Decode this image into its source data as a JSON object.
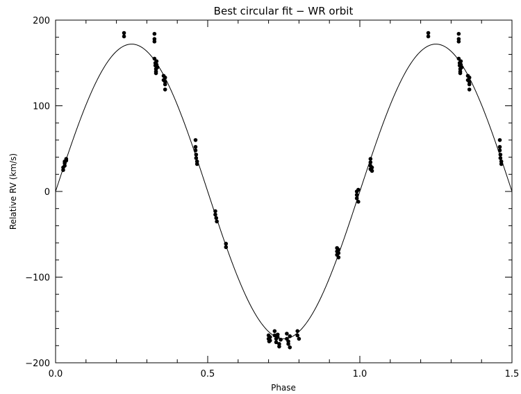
{
  "chart_data": {
    "type": "scatter",
    "title": "Best circular fit − WR orbit",
    "xlabel": "Phase",
    "ylabel": "Relative RV (km/s)",
    "xlim": [
      0.0,
      1.5
    ],
    "ylim": [
      -200,
      200
    ],
    "x_ticks": [
      "0.0",
      "0.5",
      "1.0",
      "1.5"
    ],
    "y_ticks": [
      "−200",
      "−100",
      "0",
      "100",
      "200"
    ],
    "grid": false,
    "legend": "none",
    "fit_curve": {
      "amplitude": 172,
      "offset": 0,
      "phase_of_max": 0.25
    },
    "series": [
      {
        "x": [
          0.025,
          0.025,
          0.03,
          0.03,
          0.03,
          0.035,
          0.035,
          0.225,
          0.225,
          0.325,
          0.325,
          0.325,
          0.325,
          0.328,
          0.328,
          0.33,
          0.33,
          0.33,
          0.332,
          0.332,
          0.335,
          0.355,
          0.355,
          0.36,
          0.36,
          0.36,
          0.36,
          0.46,
          0.46,
          0.46,
          0.462,
          0.462,
          0.465,
          0.465,
          0.525,
          0.525,
          0.528,
          0.53,
          0.56,
          0.56,
          0.7,
          0.7,
          0.702,
          0.705,
          0.705,
          0.72,
          0.72,
          0.725,
          0.725,
          0.73,
          0.73,
          0.735,
          0.735,
          0.74,
          0.76,
          0.76,
          0.765,
          0.765,
          0.77,
          0.77,
          0.795,
          0.795,
          0.8,
          0.925,
          0.925,
          0.925,
          0.93,
          0.93,
          0.93,
          0.99,
          0.99,
          0.99,
          0.995,
          0.995,
          1.035,
          1.035,
          1.035,
          1.035,
          1.04,
          1.04,
          1.225,
          1.225,
          1.325,
          1.325,
          1.325,
          1.325,
          1.328,
          1.328,
          1.33,
          1.33,
          1.33,
          1.332,
          1.332,
          1.335,
          1.355,
          1.355,
          1.36,
          1.36,
          1.36,
          1.36,
          1.46,
          1.46,
          1.46,
          1.462,
          1.462,
          1.465,
          1.465
        ],
        "y": [
          25,
          28,
          30,
          33,
          35,
          36,
          38,
          181,
          185,
          184,
          178,
          175,
          155,
          150,
          147,
          143,
          140,
          138,
          152,
          148,
          145,
          135,
          130,
          128,
          125,
          119,
          133,
          60,
          52,
          48,
          43,
          39,
          35,
          32,
          -23,
          -27,
          -31,
          -35,
          -61,
          -65,
          -168,
          -172,
          -175,
          -170,
          -174,
          -163,
          -168,
          -172,
          -176,
          -167,
          -170,
          -178,
          -181,
          -173,
          -166,
          -172,
          -175,
          -178,
          -182,
          -169,
          -163,
          -168,
          -172,
          -66,
          -70,
          -74,
          -77,
          -72,
          -68,
          0,
          -4,
          -8,
          -12,
          2,
          38,
          34,
          30,
          26,
          28,
          24,
          181,
          185,
          184,
          178,
          175,
          155,
          150,
          147,
          143,
          140,
          138,
          152,
          148,
          145,
          135,
          130,
          128,
          125,
          119,
          133,
          60,
          52,
          48,
          43,
          39,
          35,
          32
        ]
      }
    ]
  }
}
